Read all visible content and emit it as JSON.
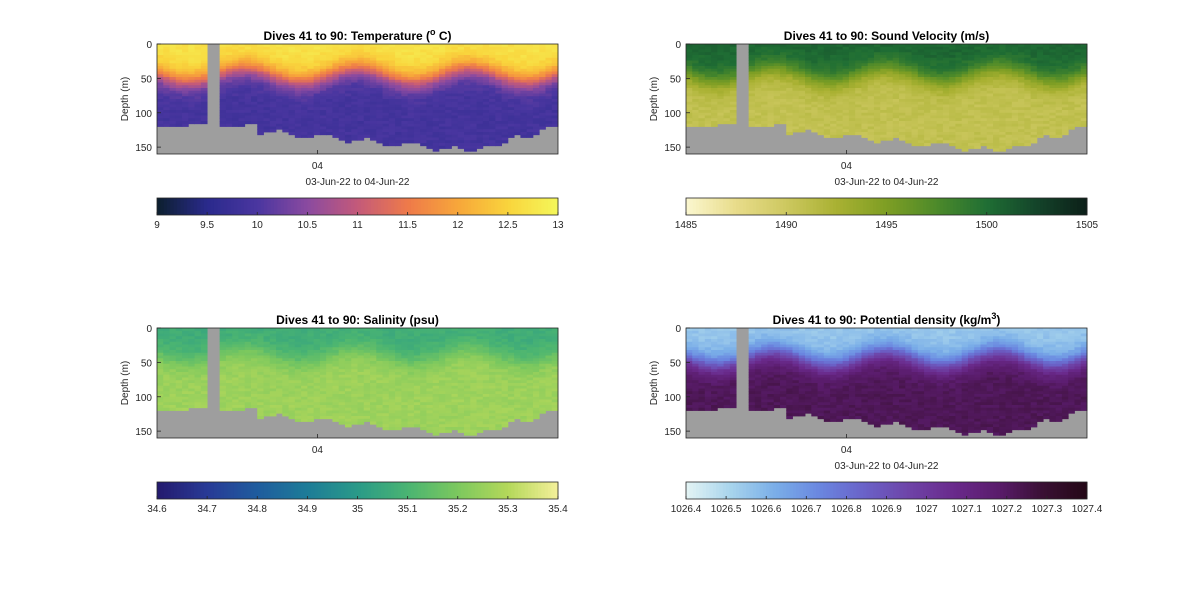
{
  "chart_data": [
    {
      "type": "heatmap",
      "title": "Dives 41 to 90: Temperature (",
      "title_sup": "o",
      "title_suffix": " C)",
      "ylabel": "Depth (m)",
      "xlabel": "03-Jun-22 to 04-Jun-22",
      "x_ticks": [
        "04"
      ],
      "y_ticks": [
        "0",
        "50",
        "100",
        "150"
      ],
      "ylim": [
        0,
        160
      ],
      "colorbar": {
        "ticks": [
          "9",
          "9.5",
          "10",
          "10.5",
          "11",
          "11.5",
          "12",
          "12.5",
          "13"
        ],
        "range": [
          9,
          13
        ]
      },
      "colorscale": [
        "#0c1f2e",
        "#2a2a8c",
        "#4a36a0",
        "#8a4aa0",
        "#c45a7a",
        "#ee7a4a",
        "#f7a63a",
        "#f9d43c",
        "#f4f75a"
      ],
      "surface_value": 12.7,
      "deep_value": 9.9,
      "thermocline_depth": 45
    },
    {
      "type": "heatmap",
      "title": "Dives 41 to 90: Sound Velocity (m/s)",
      "title_sup": "",
      "title_suffix": "",
      "ylabel": "Depth (m)",
      "xlabel": "03-Jun-22 to 04-Jun-22",
      "x_ticks": [
        "04"
      ],
      "y_ticks": [
        "0",
        "50",
        "100",
        "150"
      ],
      "ylim": [
        0,
        160
      ],
      "colorbar": {
        "ticks": [
          "1485",
          "1490",
          "1495",
          "1500",
          "1505"
        ],
        "range": [
          1485,
          1505
        ]
      },
      "colorscale": [
        "#fbf7d0",
        "#e8dc8a",
        "#cdc860",
        "#a9b132",
        "#7e9e24",
        "#4d8a2a",
        "#1f6e34",
        "#14442a",
        "#0c1f18"
      ],
      "surface_value": 1500.5,
      "deep_value": 1490.8,
      "thermocline_depth": 45
    },
    {
      "type": "heatmap",
      "title": "Dives 41 to 90: Salinity (psu)",
      "title_sup": "",
      "title_suffix": "",
      "ylabel": "Depth (m)",
      "xlabel": "",
      "x_ticks": [
        "04"
      ],
      "y_ticks": [
        "0",
        "50",
        "100",
        "150"
      ],
      "ylim": [
        0,
        160
      ],
      "colorbar": {
        "ticks": [
          "34.6",
          "34.7",
          "34.8",
          "34.9",
          "35",
          "35.1",
          "35.2",
          "35.3",
          "35.4"
        ],
        "range": [
          34.6,
          35.4
        ]
      },
      "colorscale": [
        "#241a6e",
        "#283a96",
        "#1f5c9e",
        "#1d7c98",
        "#2a9a88",
        "#4ab472",
        "#7cc85e",
        "#b4d85a",
        "#f4f09a"
      ],
      "surface_value": 35.07,
      "deep_value": 35.26,
      "thermocline_depth": 40
    },
    {
      "type": "heatmap",
      "title": "Dives 41 to 90: Potential density (kg/m",
      "title_sup": "3",
      "title_suffix": ")",
      "ylabel": "Depth (m)",
      "xlabel": "03-Jun-22 to 04-Jun-22",
      "x_ticks": [
        "04"
      ],
      "y_ticks": [
        "0",
        "50",
        "100",
        "150"
      ],
      "ylim": [
        0,
        160
      ],
      "colorbar": {
        "ticks": [
          "1026.4",
          "1026.5",
          "1026.6",
          "1026.7",
          "1026.8",
          "1026.9",
          "1027",
          "1027.1",
          "1027.2",
          "1027.3",
          "1027.4"
        ],
        "range": [
          1026.4,
          1027.4
        ]
      },
      "colorscale": [
        "#e4f4f4",
        "#a8d4ec",
        "#7aaee8",
        "#6a86e0",
        "#6a62c8",
        "#6e44a8",
        "#6a2a8c",
        "#5a1c6c",
        "#3a1034",
        "#240816"
      ],
      "surface_value": 1026.55,
      "deep_value": 1027.22,
      "thermocline_depth": 45
    }
  ]
}
